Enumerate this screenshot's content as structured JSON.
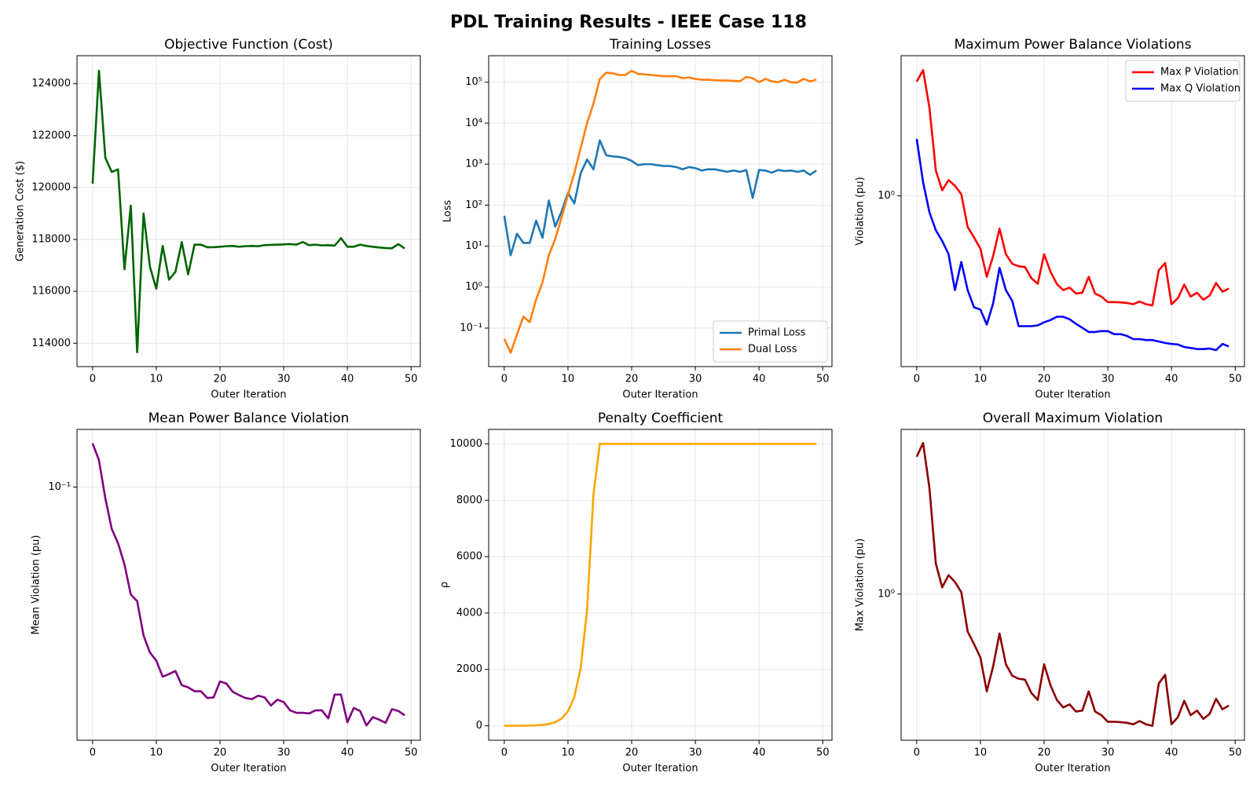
{
  "title": "PDL Training Results - IEEE Case 118",
  "chart_data": [
    {
      "type": "line",
      "title": "Objective Function (Cost)",
      "xlabel": "Outer Iteration",
      "ylabel": "Generation Cost ($)",
      "x": [
        0,
        1,
        2,
        3,
        4,
        5,
        6,
        7,
        8,
        9,
        10,
        11,
        12,
        13,
        14,
        15,
        16,
        17,
        18,
        19,
        20,
        21,
        22,
        23,
        24,
        25,
        26,
        27,
        28,
        29,
        30,
        31,
        32,
        33,
        34,
        35,
        36,
        37,
        38,
        39,
        40,
        41,
        42,
        43,
        44,
        45,
        46,
        47,
        48,
        49
      ],
      "values": [
        120150,
        124500,
        121150,
        120600,
        120700,
        116850,
        119300,
        113650,
        119000,
        116950,
        116100,
        117750,
        116450,
        116750,
        117900,
        116650,
        117800,
        117800,
        117700,
        117700,
        117720,
        117740,
        117750,
        117720,
        117740,
        117750,
        117740,
        117780,
        117790,
        117800,
        117810,
        117820,
        117800,
        117900,
        117780,
        117800,
        117770,
        117780,
        117760,
        118050,
        117720,
        117720,
        117800,
        117750,
        117720,
        117690,
        117670,
        117660,
        117820,
        117650
      ],
      "color": "#006400",
      "xlim": [
        -2.45,
        51.45
      ],
      "xticks": [
        0,
        10,
        20,
        30,
        40,
        50
      ],
      "ylim": [
        113100,
        125080
      ],
      "yticks": [
        114000,
        116000,
        118000,
        120000,
        122000,
        124000
      ],
      "grid": true
    },
    {
      "type": "line",
      "title": "Training Losses",
      "xlabel": "Outer Iteration",
      "ylabel": "Loss",
      "yscale": "log",
      "legend": "lower right",
      "x": [
        0,
        1,
        2,
        3,
        4,
        5,
        6,
        7,
        8,
        9,
        10,
        11,
        12,
        13,
        14,
        15,
        16,
        17,
        18,
        19,
        20,
        21,
        22,
        23,
        24,
        25,
        26,
        27,
        28,
        29,
        30,
        31,
        32,
        33,
        34,
        35,
        36,
        37,
        38,
        39,
        40,
        41,
        42,
        43,
        44,
        45,
        46,
        47,
        48,
        49
      ],
      "series": [
        {
          "name": "Primal Loss",
          "color": "#1f77b4",
          "values": [
            55,
            6,
            20,
            12,
            12,
            42,
            16,
            130,
            30,
            70,
            200,
            110,
            600,
            1300,
            750,
            3800,
            1650,
            1550,
            1500,
            1400,
            1200,
            950,
            1000,
            1000,
            950,
            900,
            900,
            850,
            750,
            850,
            800,
            700,
            750,
            750,
            700,
            650,
            700,
            650,
            720,
            150,
            720,
            700,
            620,
            720,
            680,
            700,
            650,
            700,
            550,
            700
          ]
        },
        {
          "name": "Dual Loss",
          "color": "#ff7f0e",
          "values": [
            0.055,
            0.025,
            0.07,
            0.19,
            0.14,
            0.5,
            1.3,
            6,
            15,
            50,
            180,
            600,
            2500,
            10000,
            30000,
            120000,
            170000,
            165000,
            150000,
            150000,
            190000,
            160000,
            155000,
            150000,
            145000,
            140000,
            140000,
            140000,
            125000,
            130000,
            120000,
            115000,
            115000,
            112000,
            110000,
            110000,
            108000,
            105000,
            135000,
            125000,
            100000,
            120000,
            105000,
            100000,
            115000,
            100000,
            98000,
            120000,
            105000,
            115000
          ]
        }
      ],
      "xlim": [
        -2.45,
        51.45
      ],
      "xticks": [
        0,
        10,
        20,
        30,
        40,
        50
      ],
      "ylim": [
        0.0115,
        442000
      ],
      "yticks": [
        {
          "value": 0.1,
          "label": "10⁻¹"
        },
        {
          "value": 1,
          "label": "10⁰"
        },
        {
          "value": 10,
          "label": "10¹"
        },
        {
          "value": 100,
          "label": "10²"
        },
        {
          "value": 1000,
          "label": "10³"
        },
        {
          "value": 10000,
          "label": "10⁴"
        },
        {
          "value": 100000,
          "label": "10⁵"
        }
      ],
      "grid": true
    },
    {
      "type": "line",
      "title": "Maximum Power Balance Violations",
      "xlabel": "Outer Iteration",
      "ylabel": "Violation (pu)",
      "yscale": "log",
      "legend": "upper right",
      "x": [
        0,
        1,
        2,
        3,
        4,
        5,
        6,
        7,
        8,
        9,
        10,
        11,
        12,
        13,
        14,
        15,
        16,
        17,
        18,
        19,
        20,
        21,
        22,
        23,
        24,
        25,
        26,
        27,
        28,
        29,
        30,
        31,
        32,
        33,
        34,
        35,
        36,
        37,
        38,
        39,
        40,
        41,
        42,
        43,
        44,
        45,
        46,
        47,
        48,
        49
      ],
      "series": [
        {
          "name": "Max P Violation",
          "color": "#ff0000",
          "values": [
            3.98,
            4.57,
            2.9,
            1.36,
            1.07,
            1.21,
            1.13,
            1.02,
            0.686,
            0.605,
            0.528,
            0.376,
            0.484,
            0.673,
            0.494,
            0.44,
            0.427,
            0.423,
            0.37,
            0.345,
            0.494,
            0.4,
            0.345,
            0.32,
            0.33,
            0.307,
            0.31,
            0.376,
            0.307,
            0.296,
            0.277,
            0.277,
            0.276,
            0.274,
            0.27,
            0.279,
            0.27,
            0.266,
            0.407,
            0.444,
            0.27,
            0.29,
            0.342,
            0.296,
            0.31,
            0.285,
            0.3,
            0.349,
            0.314,
            0.326
          ]
        },
        {
          "name": "Max Q Violation",
          "color": "#0000ff",
          "values": [
            1.99,
            1.18,
            0.82,
            0.66,
            0.58,
            0.494,
            0.32,
            0.45,
            0.32,
            0.26,
            0.253,
            0.211,
            0.273,
            0.419,
            0.32,
            0.281,
            0.207,
            0.207,
            0.207,
            0.209,
            0.217,
            0.223,
            0.232,
            0.232,
            0.225,
            0.213,
            0.203,
            0.193,
            0.193,
            0.195,
            0.195,
            0.188,
            0.188,
            0.184,
            0.177,
            0.177,
            0.175,
            0.175,
            0.172,
            0.169,
            0.167,
            0.166,
            0.161,
            0.159,
            0.157,
            0.157,
            0.158,
            0.155,
            0.167,
            0.162
          ]
        }
      ],
      "xlim": [
        -2.45,
        51.45
      ],
      "xticks": [
        0,
        10,
        20,
        30,
        40,
        50
      ],
      "ylim": [
        0.127,
        5.44
      ],
      "yticks": [
        {
          "value": 1,
          "label": "10⁰"
        }
      ],
      "grid": true
    },
    {
      "type": "line",
      "title": "Mean Power Balance Violation",
      "xlabel": "Outer Iteration",
      "ylabel": "Mean Violation (pu)",
      "yscale": "log",
      "x": [
        0,
        1,
        2,
        3,
        4,
        5,
        6,
        7,
        8,
        9,
        10,
        11,
        12,
        13,
        14,
        15,
        16,
        17,
        18,
        19,
        20,
        21,
        22,
        23,
        24,
        25,
        26,
        27,
        28,
        29,
        30,
        31,
        32,
        33,
        34,
        35,
        36,
        37,
        38,
        39,
        40,
        41,
        42,
        43,
        44,
        45,
        46,
        47,
        48,
        49
      ],
      "values": [
        0.122,
        0.113,
        0.095,
        0.0827,
        0.0774,
        0.0704,
        0.0613,
        0.0595,
        0.0509,
        0.0471,
        0.0454,
        0.0422,
        0.0427,
        0.0433,
        0.0406,
        0.0402,
        0.0395,
        0.0395,
        0.0383,
        0.0384,
        0.0413,
        0.0409,
        0.0394,
        0.0388,
        0.0383,
        0.0381,
        0.0387,
        0.0384,
        0.037,
        0.038,
        0.0376,
        0.0362,
        0.0358,
        0.0358,
        0.0357,
        0.0362,
        0.0362,
        0.0349,
        0.0389,
        0.0389,
        0.0343,
        0.0366,
        0.0361,
        0.0338,
        0.0351,
        0.0347,
        0.0342,
        0.0364,
        0.0361,
        0.0354
      ],
      "color": "#800080",
      "xlim": [
        -2.45,
        51.45
      ],
      "xticks": [
        0,
        10,
        20,
        30,
        40,
        50
      ],
      "ylim": [
        0.0316,
        0.13
      ],
      "yticks": [
        {
          "value": 0.1,
          "label": "10⁻¹"
        }
      ],
      "grid": true
    },
    {
      "type": "line",
      "title": "Penalty Coefficient",
      "xlabel": "Outer Iteration",
      "ylabel": "ρ",
      "x": [
        0,
        1,
        2,
        3,
        4,
        5,
        6,
        7,
        8,
        9,
        10,
        11,
        12,
        13,
        14,
        15,
        16,
        17,
        18,
        19,
        20,
        21,
        22,
        23,
        24,
        25,
        26,
        27,
        28,
        29,
        30,
        31,
        32,
        33,
        34,
        35,
        36,
        37,
        38,
        39,
        40,
        41,
        42,
        43,
        44,
        45,
        46,
        47,
        48,
        49
      ],
      "values": [
        0.5,
        1,
        2,
        4,
        8,
        16,
        32,
        64,
        128,
        256,
        512,
        1024,
        2048,
        4096,
        8192,
        10000,
        10000,
        10000,
        10000,
        10000,
        10000,
        10000,
        10000,
        10000,
        10000,
        10000,
        10000,
        10000,
        10000,
        10000,
        10000,
        10000,
        10000,
        10000,
        10000,
        10000,
        10000,
        10000,
        10000,
        10000,
        10000,
        10000,
        10000,
        10000,
        10000,
        10000,
        10000,
        10000,
        10000,
        10000
      ],
      "color": "#ffa500",
      "xlim": [
        -2.45,
        51.45
      ],
      "xticks": [
        0,
        10,
        20,
        30,
        40,
        50
      ],
      "ylim": [
        -513,
        10513
      ],
      "yticks": [
        0,
        2000,
        4000,
        6000,
        8000,
        10000
      ],
      "grid": true
    },
    {
      "type": "line",
      "title": "Overall Maximum Violation",
      "xlabel": "Outer Iteration",
      "ylabel": "Max Violation (pu)",
      "yscale": "log",
      "x": [
        0,
        1,
        2,
        3,
        4,
        5,
        6,
        7,
        8,
        9,
        10,
        11,
        12,
        13,
        14,
        15,
        16,
        17,
        18,
        19,
        20,
        21,
        22,
        23,
        24,
        25,
        26,
        27,
        28,
        29,
        30,
        31,
        32,
        33,
        34,
        35,
        36,
        37,
        38,
        39,
        40,
        41,
        42,
        43,
        44,
        45,
        46,
        47,
        48,
        49
      ],
      "values": [
        3.98,
        4.57,
        2.9,
        1.36,
        1.07,
        1.21,
        1.13,
        1.02,
        0.686,
        0.605,
        0.528,
        0.376,
        0.484,
        0.673,
        0.494,
        0.44,
        0.427,
        0.423,
        0.37,
        0.345,
        0.494,
        0.4,
        0.345,
        0.32,
        0.33,
        0.307,
        0.31,
        0.376,
        0.307,
        0.296,
        0.277,
        0.277,
        0.276,
        0.274,
        0.27,
        0.279,
        0.27,
        0.266,
        0.407,
        0.444,
        0.27,
        0.29,
        0.342,
        0.296,
        0.31,
        0.285,
        0.3,
        0.349,
        0.314,
        0.326
      ],
      "color": "#8b0000",
      "xlim": [
        -2.45,
        51.45
      ],
      "xticks": [
        0,
        10,
        20,
        30,
        40,
        50
      ],
      "ylim": [
        0.23,
        5.24
      ],
      "yticks": [
        {
          "value": 1,
          "label": "10⁰"
        }
      ],
      "grid": true
    }
  ]
}
